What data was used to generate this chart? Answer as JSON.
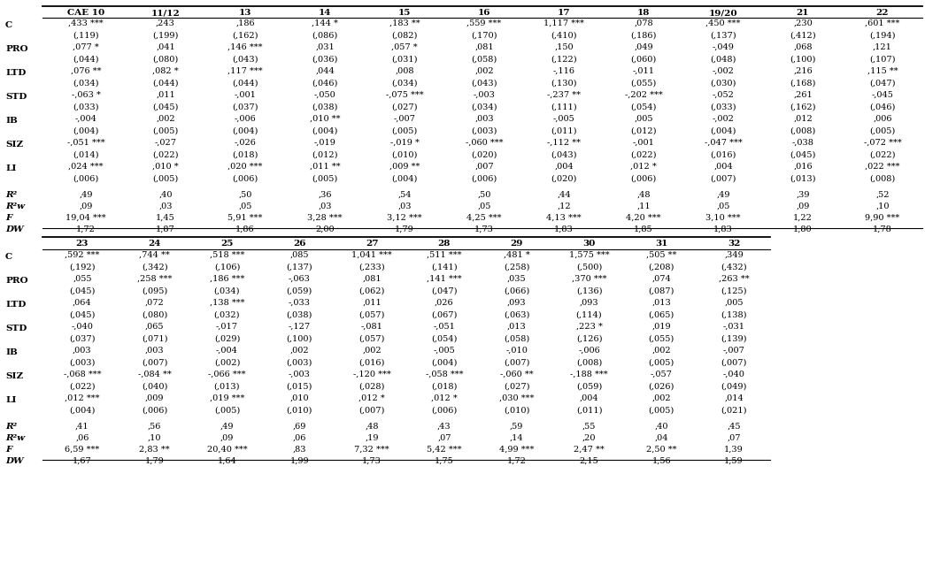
{
  "background_color": "#ffffff",
  "top_headers": [
    "CAE 10",
    "11/12",
    "13",
    "14",
    "15",
    "16",
    "17",
    "18",
    "19/20",
    "21",
    "22"
  ],
  "bottom_headers": [
    "23",
    "24",
    "25",
    "26",
    "27",
    "28",
    "29",
    "30",
    "31",
    "32"
  ],
  "top_data": {
    "C": [
      ",433 ***",
      ",243",
      ",186",
      ",144 *",
      ",183 **",
      ",559 ***",
      "1,117 ***",
      ",078",
      ",450 ***",
      ",230",
      ",601 ***"
    ],
    "C_se": [
      "(,119)",
      "(,199)",
      "(,162)",
      "(,086)",
      "(,082)",
      "(,170)",
      "(,410)",
      "(,186)",
      "(,137)",
      "(,412)",
      "(,194)"
    ],
    "PRO": [
      ",077 *",
      ",041",
      ",146 ***",
      ",031",
      ",057 *",
      ",081",
      ",150",
      ",049",
      "-,049",
      ",068",
      ",121"
    ],
    "PRO_se": [
      "(,044)",
      "(,080)",
      "(,043)",
      "(,036)",
      "(,031)",
      "(,058)",
      "(,122)",
      "(,060)",
      "(,048)",
      "(,100)",
      "(,107)"
    ],
    "LTD": [
      ",076 **",
      ",082 *",
      ",117 ***",
      ",044",
      ",008",
      ",002",
      "-,116",
      "-,011",
      "-,002",
      ",216",
      ",115 **"
    ],
    "LTD_se": [
      "(,034)",
      "(,044)",
      "(,044)",
      "(,046)",
      "(,034)",
      "(,043)",
      "(,130)",
      "(,055)",
      "(,030)",
      "(,168)",
      "(,047)"
    ],
    "STD": [
      "-,063 *",
      ",011",
      "-,001",
      "-,050",
      "-,075 ***",
      "-,003",
      "-,237 **",
      "-,202 ***",
      "-,052",
      ",261",
      "-,045"
    ],
    "STD_se": [
      "(,033)",
      "(,045)",
      "(,037)",
      "(,038)",
      "(,027)",
      "(,034)",
      "(,111)",
      "(,054)",
      "(,033)",
      "(,162)",
      "(,046)"
    ],
    "IB": [
      "-,004",
      ",002",
      "-,006",
      ",010 **",
      "-,007",
      ",003",
      "-,005",
      ",005",
      "-,002",
      ",012",
      ",006"
    ],
    "IB_se": [
      "(,004)",
      "(,005)",
      "(,004)",
      "(,004)",
      "(,005)",
      "(,003)",
      "(,011)",
      "(,012)",
      "(,004)",
      "(,008)",
      "(,005)"
    ],
    "SIZ": [
      "-,051 ***",
      "-,027",
      "-,026",
      "-,019",
      "-,019 *",
      "-,060 ***",
      "-,112 **",
      "-,001",
      "-,047 ***",
      "-,038",
      "-,072 ***"
    ],
    "SIZ_se": [
      "(,014)",
      "(,022)",
      "(,018)",
      "(,012)",
      "(,010)",
      "(,020)",
      "(,043)",
      "(,022)",
      "(,016)",
      "(,045)",
      "(,022)"
    ],
    "LI": [
      ",024 ***",
      ",010 *",
      ",020 ***",
      ",011 **",
      ",009 **",
      ",007",
      ",004",
      ",012 *",
      ",004",
      ",016",
      ",022 ***"
    ],
    "LI_se": [
      "(,006)",
      "(,005)",
      "(,006)",
      "(,005)",
      "(,004)",
      "(,006)",
      "(,020)",
      "(,006)",
      "(,007)",
      "(,013)",
      "(,008)"
    ],
    "R2": [
      ",49",
      ",40",
      ",50",
      ",36",
      ",54",
      ",50",
      ",44",
      ",48",
      ",49",
      ",39",
      ",52"
    ],
    "R2w": [
      ",09",
      ",03",
      ",05",
      ",03",
      ",03",
      ",05",
      ",12",
      ",11",
      ",05",
      ",09",
      ",10"
    ],
    "F": [
      "19,04 ***",
      "1,45",
      "5,91 ***",
      "3,28 ***",
      "3,12 ***",
      "4,25 ***",
      "4,13 ***",
      "4,20 ***",
      "3,10 ***",
      "1,22",
      "9,90 ***"
    ],
    "DW": [
      "1,72",
      "1,87",
      "1,86",
      "2,00",
      "1,79",
      "1,73",
      "1,83",
      "1,85",
      "1,83",
      "1,80",
      "1,78"
    ]
  },
  "bottom_data": {
    "C": [
      ",592 ***",
      ",744 **",
      ",518 ***",
      ",085",
      "1,041 ***",
      ",511 ***",
      ",481 *",
      "1,575 ***",
      ",505 **",
      ",349"
    ],
    "C_se": [
      "(,192)",
      "(,342)",
      "(,106)",
      "(,137)",
      "(,233)",
      "(,141)",
      "(,258)",
      "(,500)",
      "(,208)",
      "(,432)"
    ],
    "PRO": [
      ",055",
      ",258 ***",
      ",186 ***",
      "-,063",
      ",081",
      ",141 ***",
      ",035",
      ",370 ***",
      ",074",
      ",263 **"
    ],
    "PRO_se": [
      "(,045)",
      "(,095)",
      "(,034)",
      "(,059)",
      "(,062)",
      "(,047)",
      "(,066)",
      "(,136)",
      "(,087)",
      "(,125)"
    ],
    "LTD": [
      ",064",
      ",072",
      ",138 ***",
      "-,033",
      ",011",
      ",026",
      ",093",
      ",093",
      ",013",
      ",005"
    ],
    "LTD_se": [
      "(,045)",
      "(,080)",
      "(,032)",
      "(,038)",
      "(,057)",
      "(,067)",
      "(,063)",
      "(,114)",
      "(,065)",
      "(,138)"
    ],
    "STD": [
      "-,040",
      ",065",
      "-,017",
      "-,127",
      "-,081",
      "-,051",
      ",013",
      ",223 *",
      ",019",
      "-,031"
    ],
    "STD_se": [
      "(,037)",
      "(,071)",
      "(,029)",
      "(,100)",
      "(,057)",
      "(,054)",
      "(,058)",
      "(,126)",
      "(,055)",
      "(,139)"
    ],
    "IB": [
      ",003",
      ",003",
      "-,004",
      ",002",
      ",002",
      "-,005",
      "-,010",
      "-,006",
      ",002",
      "-,007"
    ],
    "IB_se": [
      "(,003)",
      "(,007)",
      "(,002)",
      "(,003)",
      "(,016)",
      "(,004)",
      "(,007)",
      "(,008)",
      "(,005)",
      "(,007)"
    ],
    "SIZ": [
      "-,068 ***",
      "-,084 **",
      "-,066 ***",
      "-,003",
      "-,120 ***",
      "-,058 ***",
      "-,060 **",
      "-,188 ***",
      "-,057",
      "-,040"
    ],
    "SIZ_se": [
      "(,022)",
      "(,040)",
      "(,013)",
      "(,015)",
      "(,028)",
      "(,018)",
      "(,027)",
      "(,059)",
      "(,026)",
      "(,049)"
    ],
    "LI": [
      ",012 ***",
      ",009",
      ",019 ***",
      ",010",
      ",012 *",
      ",012 *",
      ",030 ***",
      ",004",
      ",002",
      ",014"
    ],
    "LI_se": [
      "(,004)",
      "(,006)",
      "(,005)",
      "(,010)",
      "(,007)",
      "(,006)",
      "(,010)",
      "(,011)",
      "(,005)",
      "(,021)"
    ],
    "R2": [
      ",41",
      ",56",
      ",49",
      ",69",
      ",48",
      ",43",
      ",59",
      ",55",
      ",40",
      ",45"
    ],
    "R2w": [
      ",06",
      ",10",
      ",09",
      ",06",
      ",19",
      ",07",
      ",14",
      ",20",
      ",04",
      ",07"
    ],
    "F": [
      "6,59 ***",
      "2,83 **",
      "20,40 ***",
      ",83",
      "7,32 ***",
      "5,42 ***",
      "4,99 ***",
      "2,47 **",
      "2,50 **",
      "1,39"
    ],
    "DW": [
      "1,67",
      "1,79",
      "1,64",
      "1,99",
      "1,73",
      "1,75",
      "1,72",
      "2,15",
      "1,56",
      "1,59"
    ]
  }
}
